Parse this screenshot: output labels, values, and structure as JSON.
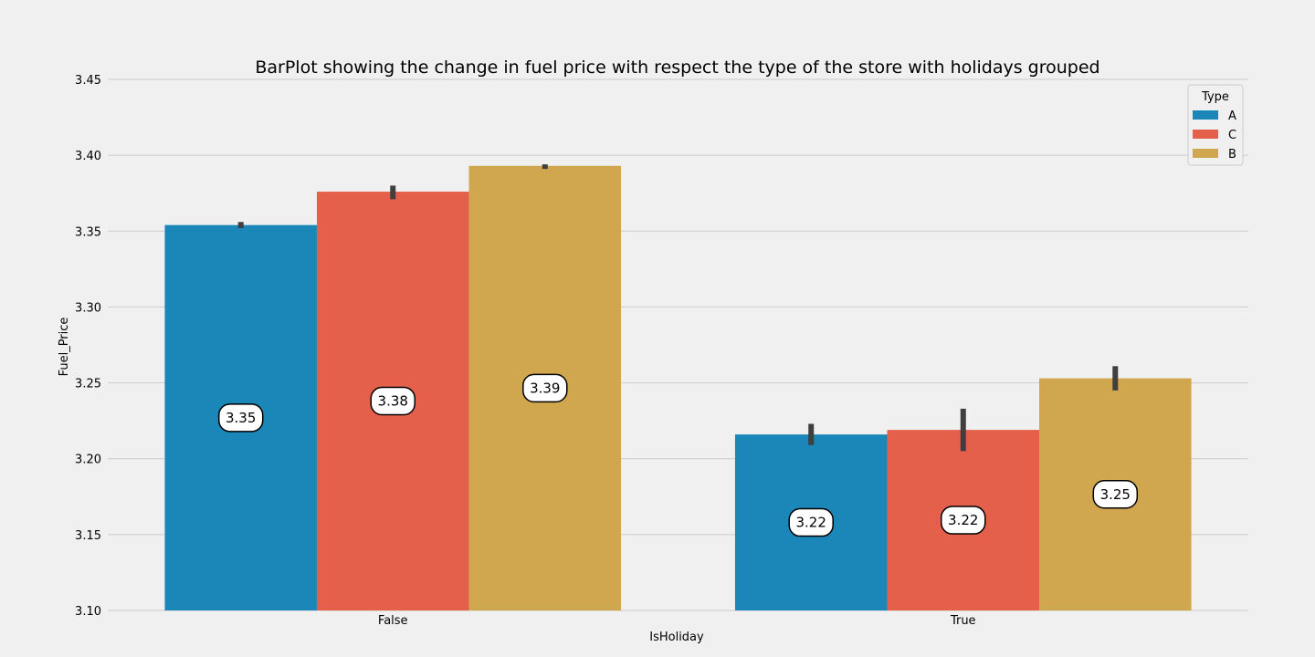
{
  "chart_data": {
    "type": "bar",
    "title": "BarPlot showing the change in fuel price with respect the type of the store with holidays grouped",
    "xlabel": "IsHoliday",
    "ylabel": "Fuel_Price",
    "categories": [
      "False",
      "True"
    ],
    "ylim": [
      3.1,
      3.45
    ],
    "yticks": [
      3.1,
      3.15,
      3.2,
      3.25,
      3.3,
      3.35,
      3.4,
      3.45
    ],
    "ytick_labels": [
      "3.10",
      "3.15",
      "3.20",
      "3.25",
      "3.30",
      "3.35",
      "3.40",
      "3.45"
    ],
    "grid": "horizontal",
    "legend": {
      "title": "Type",
      "placement": "top-right"
    },
    "series": [
      {
        "name": "A",
        "color": "#1b87b9",
        "values": [
          3.354,
          3.216
        ],
        "error": [
          [
            3.352,
            3.356
          ],
          [
            3.209,
            3.223
          ]
        ],
        "labels": [
          "3.35",
          "3.22"
        ]
      },
      {
        "name": "C",
        "color": "#e5604a",
        "values": [
          3.376,
          3.219
        ],
        "error": [
          [
            3.371,
            3.38
          ],
          [
            3.205,
            3.233
          ]
        ],
        "labels": [
          "3.38",
          "3.22"
        ]
      },
      {
        "name": "B",
        "color": "#d0a64e",
        "values": [
          3.393,
          3.253
        ],
        "error": [
          [
            3.391,
            3.394
          ],
          [
            3.245,
            3.261
          ]
        ],
        "labels": [
          "3.39",
          "3.25"
        ]
      }
    ]
  }
}
